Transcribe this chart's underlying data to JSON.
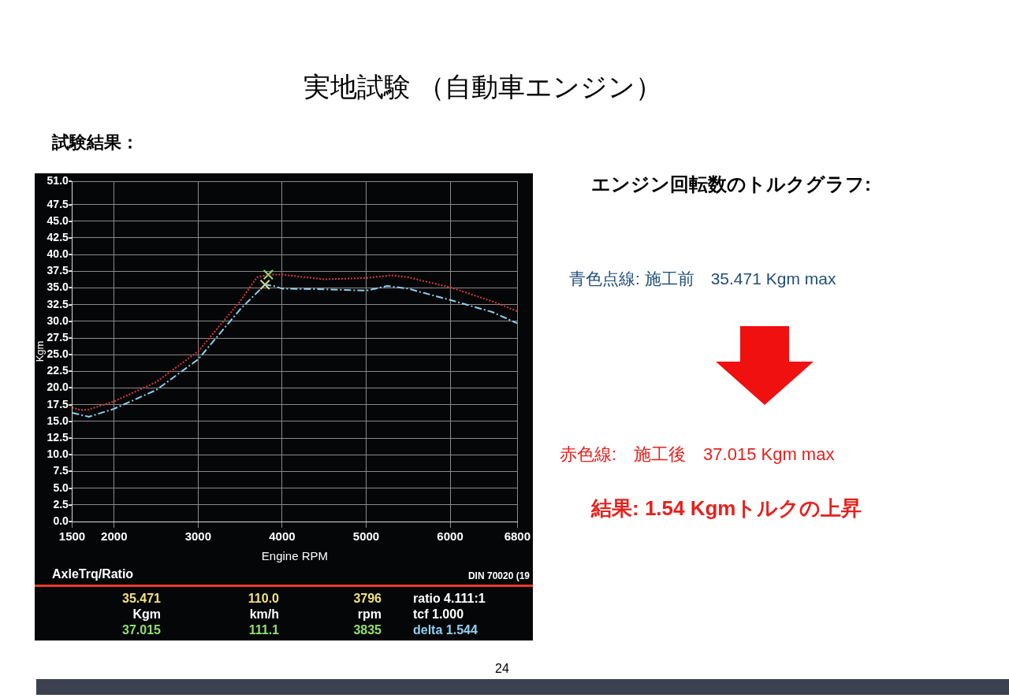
{
  "chart_data": {
    "type": "line",
    "title": "実地試験 （自動車エンジン）",
    "subtitle": "試験結果：",
    "xlabel": "Engine RPM",
    "ylabel": "Kgm",
    "x": [
      1500,
      1600,
      1700,
      2000,
      2500,
      3000,
      3500,
      3700,
      3835,
      4000,
      4500,
      5000,
      5300,
      5500,
      6000,
      6500,
      6800
    ],
    "series": [
      {
        "color": "#d83a3a",
        "line_style": "dotted",
        "values": [
          17.1,
          16.7,
          16.8,
          18.0,
          20.9,
          25.5,
          33.0,
          36.6,
          37.0,
          37.0,
          36.3,
          36.5,
          36.9,
          36.6,
          35.1,
          33.0,
          31.5
        ]
      },
      {
        "color": "#8fd0ee",
        "line_style": "dashed",
        "x": [
          1500,
          1700,
          2000,
          2500,
          3000,
          3500,
          3796,
          3900,
          4000,
          4500,
          5000,
          5250,
          5500,
          6000,
          6500,
          6800
        ],
        "values": [
          16.3,
          15.7,
          16.9,
          19.7,
          24.3,
          31.8,
          35.5,
          35.3,
          34.9,
          34.8,
          34.6,
          35.3,
          34.9,
          33.2,
          31.4,
          29.7
        ]
      },
      {
        "type": "scatter",
        "color": "#8fe070",
        "marker": "cross",
        "x": [
          3835
        ],
        "values": [
          37.0
        ]
      },
      {
        "type": "scatter",
        "color": "#f2e27a",
        "marker": "cross",
        "x": [
          3796
        ],
        "values": [
          35.5
        ]
      }
    ],
    "xlim": [
      1500,
      6800
    ],
    "xticks": [
      1500,
      2000,
      3000,
      4000,
      5000,
      6000,
      6800
    ],
    "ylim": [
      0,
      51
    ],
    "yticks": [
      {
        "value": 0,
        "label": "0.0-"
      },
      {
        "value": 2.5,
        "label": "2.5-"
      },
      {
        "value": 5,
        "label": "5.0-"
      },
      {
        "value": 7.5,
        "label": "7.5-"
      },
      {
        "value": 10,
        "label": "10.0-"
      },
      {
        "value": 12.5,
        "label": "12.5-"
      },
      {
        "value": 15,
        "label": "15.0-"
      },
      {
        "value": 17.5,
        "label": "17.5-"
      },
      {
        "value": 20,
        "label": "20.0-"
      },
      {
        "value": 22.5,
        "label": "22.5-"
      },
      {
        "value": 25,
        "label": "25.0-"
      },
      {
        "value": 27.5,
        "label": "27.5-"
      },
      {
        "value": 30,
        "label": "30.0-"
      },
      {
        "value": 32.5,
        "label": "32.5-"
      },
      {
        "value": 35,
        "label": "35.0-"
      },
      {
        "value": 37.5,
        "label": "37.5-"
      },
      {
        "value": 40,
        "label": "40.0-"
      },
      {
        "value": 42.5,
        "label": "42.5-"
      },
      {
        "value": 45,
        "label": "45.0-"
      },
      {
        "value": 47.5,
        "label": "47.5-"
      },
      {
        "value": 51,
        "label": "51.0-"
      }
    ],
    "grid": true,
    "annotations": [
      "エンジン回転数のトルクグラフ:",
      "青色点線: 施工前　35.471 Kgm max",
      "赤色線:　施工後　37.015 Kgm max",
      "結果: 1.54 Kgmトルクの上昇",
      "AxleTrq/Ratio",
      "DIN 70020 (19",
      "35.471",
      "110.0",
      "3796",
      "ratio 4.111:1",
      "Kgm",
      "km/h",
      "rpm",
      "tcf 1.000",
      "37.015",
      "111.1",
      "3835",
      "delta 1.544",
      "24"
    ]
  }
}
